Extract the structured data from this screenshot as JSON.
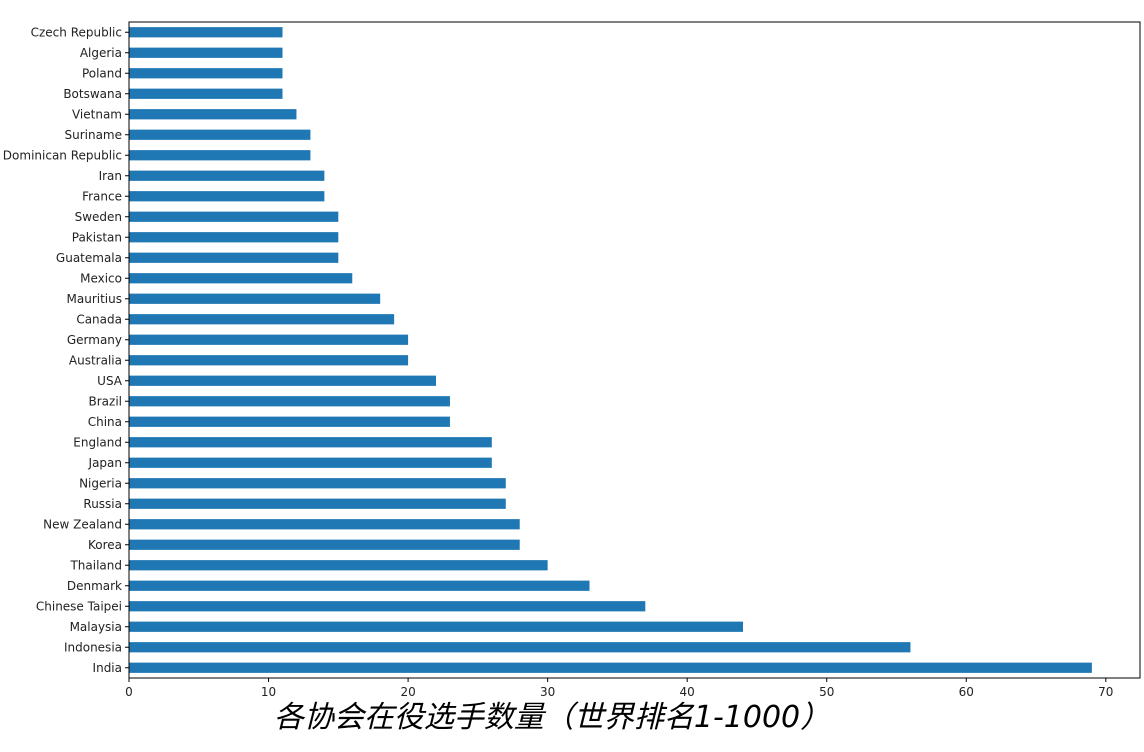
{
  "chart_data": {
    "type": "barh",
    "title": "各协会在役选手数量（世界排名1-1000）",
    "categories": [
      "Czech Republic",
      "Algeria",
      "Poland",
      "Botswana",
      "Vietnam",
      "Suriname",
      "Dominican Republic",
      "Iran",
      "France",
      "Sweden",
      "Pakistan",
      "Guatemala",
      "Mexico",
      "Mauritius",
      "Canada",
      "Germany",
      "Australia",
      "USA",
      "Brazil",
      "China",
      "England",
      "Japan",
      "Nigeria",
      "Russia",
      "New Zealand",
      "Korea",
      "Thailand",
      "Denmark",
      "Chinese Taipei",
      "Malaysia",
      "Indonesia",
      "India"
    ],
    "values": [
      11,
      11,
      11,
      11,
      12,
      13,
      13,
      14,
      14,
      15,
      15,
      15,
      16,
      18,
      19,
      20,
      20,
      22,
      23,
      23,
      26,
      26,
      27,
      27,
      28,
      28,
      30,
      33,
      37,
      44,
      56,
      69
    ],
    "color": "#1f77b4",
    "xlim": [
      0,
      72.45
    ],
    "xticks": [
      0,
      10,
      20,
      30,
      40,
      50,
      60,
      70
    ]
  }
}
